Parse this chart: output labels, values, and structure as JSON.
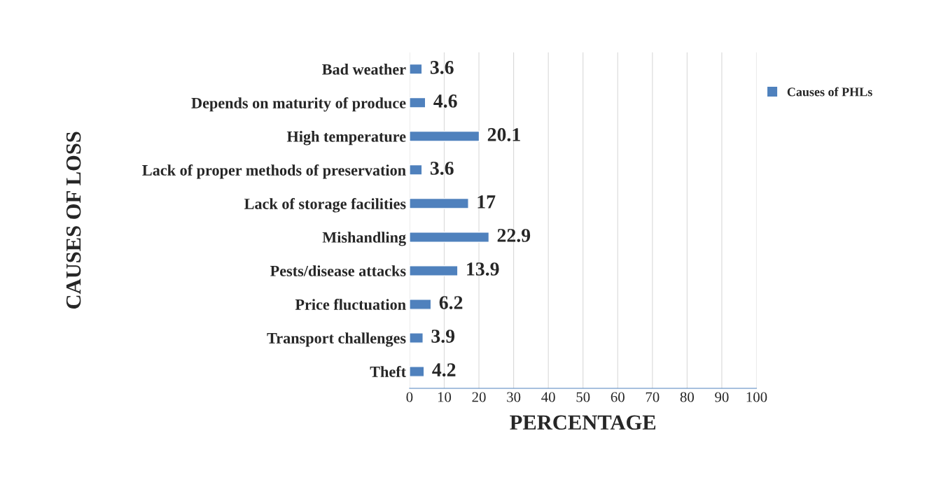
{
  "chart_data": {
    "type": "bar",
    "orientation": "horizontal",
    "xlabel": "PERCENTAGE",
    "ylabel": "CAUSES OF LOSS",
    "categories": [
      "Bad weather",
      "Depends on maturity of produce",
      "High temperature",
      "Lack of proper methods of preservation",
      "Lack of storage facilities",
      "Mishandling",
      "Pests/disease attacks",
      "Price fluctuation",
      "Transport challenges",
      "Theft"
    ],
    "series": [
      {
        "name": "Causes of PHLs",
        "color": "#4f81bd",
        "values": [
          3.6,
          4.6,
          20.1,
          3.6,
          17,
          22.9,
          13.9,
          6.2,
          3.9,
          4.2
        ]
      }
    ],
    "xlim": [
      0,
      100
    ],
    "xticks": [
      0,
      10,
      20,
      30,
      40,
      50,
      60,
      70,
      80,
      90,
      100
    ],
    "grid": "x",
    "legend": "top right",
    "data_labels": true
  }
}
